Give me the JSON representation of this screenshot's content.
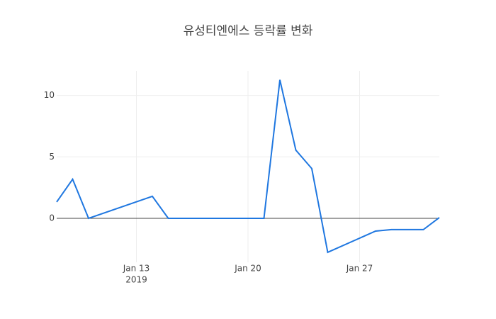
{
  "chart_data": {
    "type": "line",
    "title": "유성티엔에스 등락률 변화",
    "x": [
      "2019-01-08",
      "2019-01-09",
      "2019-01-10",
      "2019-01-14",
      "2019-01-15",
      "2019-01-21",
      "2019-01-22",
      "2019-01-23",
      "2019-01-24",
      "2019-01-25",
      "2019-01-28",
      "2019-01-29",
      "2019-01-31",
      "2019-02-01"
    ],
    "series": [
      {
        "color": "#1f77e0",
        "values": [
          1.33,
          3.18,
          0,
          1.79,
          0,
          0,
          11.27,
          5.55,
          4.05,
          -2.77,
          -1.04,
          -0.92,
          -0.92,
          0.06
        ]
      }
    ],
    "xlim": [
      "2019-01-08",
      "2019-02-01"
    ],
    "xticks": [
      {
        "value": "2019-01-13",
        "label": "Jan 13"
      },
      {
        "value": "2019-01-20",
        "label": "Jan 20"
      },
      {
        "value": "2019-01-27",
        "label": "Jan 27"
      }
    ],
    "x_year_label": "2019",
    "ylim": [
      -3.58,
      12.0
    ],
    "yticks": [
      0,
      5,
      10
    ],
    "grid": true,
    "zero_line": true
  }
}
